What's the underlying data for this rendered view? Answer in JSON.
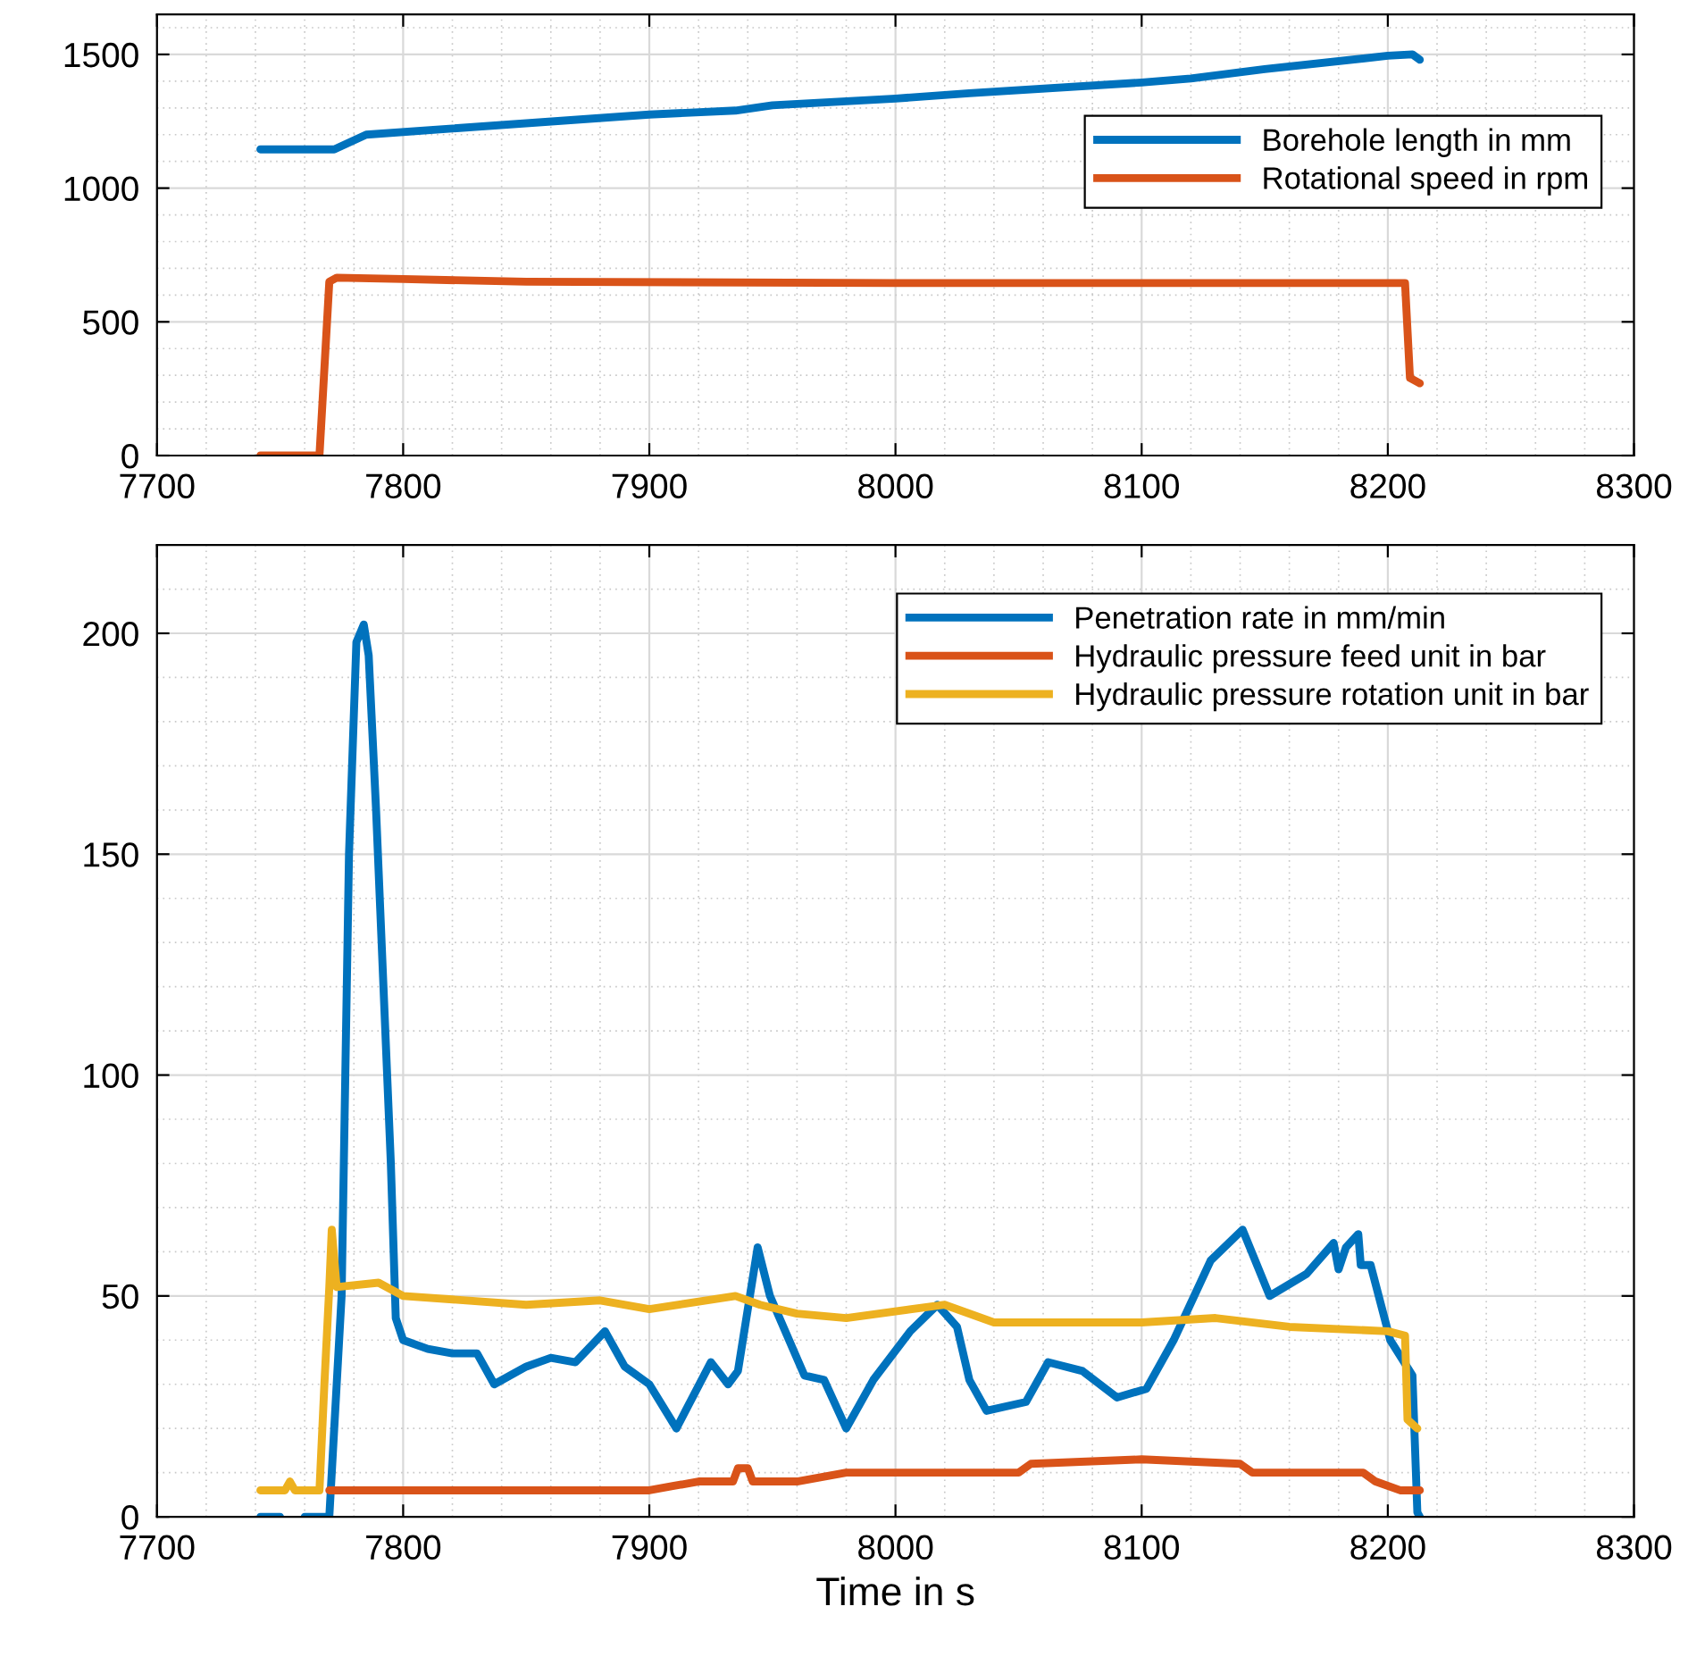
{
  "chart_data": [
    {
      "type": "line",
      "xlim": [
        7700,
        8300
      ],
      "xticks": [
        7700,
        7800,
        7900,
        8000,
        8100,
        8200,
        8300
      ],
      "ylim": [
        0,
        1650
      ],
      "yticks": [
        0,
        500,
        1000,
        1500
      ],
      "grid": true,
      "legend": "top right",
      "line_style": "solid",
      "marker": "none",
      "series": [
        {
          "name": "Borehole length in mm",
          "color": "#0072bd",
          "x": [
            7742,
            7772,
            7785,
            7900,
            7935,
            7950,
            8000,
            8030,
            8100,
            8120,
            8150,
            8200,
            8210,
            8213
          ],
          "values": [
            1145,
            1145,
            1200,
            1275,
            1290,
            1310,
            1335,
            1355,
            1395,
            1410,
            1445,
            1495,
            1500,
            1480
          ]
        },
        {
          "name": "Rotational speed in rpm",
          "color": "#d95319",
          "x": [
            7742,
            7766,
            7770,
            7773,
            7800,
            7850,
            8000,
            8100,
            8207,
            8209,
            8213
          ],
          "values": [
            0,
            0,
            650,
            665,
            660,
            650,
            645,
            645,
            645,
            290,
            270
          ]
        }
      ]
    },
    {
      "type": "line",
      "xlabel": "Time in s",
      "xlim": [
        7700,
        8300
      ],
      "xticks": [
        7700,
        7800,
        7900,
        8000,
        8100,
        8200,
        8300
      ],
      "ylim": [
        0,
        220
      ],
      "yticks": [
        0,
        50,
        100,
        150,
        200
      ],
      "grid": true,
      "legend": "top right",
      "line_style": "solid",
      "marker": "none",
      "series": [
        {
          "name": "Penetration rate in mm/min",
          "color": "#0072bd",
          "x": [
            7742,
            7750,
            7755,
            7760,
            7768,
            7770,
            7775,
            7778,
            7781,
            7784,
            7786,
            7789,
            7792,
            7795,
            7797,
            7800,
            7810,
            7820,
            7830,
            7837,
            7850,
            7860,
            7870,
            7882,
            7890,
            7900,
            7911,
            7925,
            7932,
            7936,
            7944,
            7949,
            7963,
            7971,
            7980,
            7991,
            8006,
            8017,
            8025,
            8030,
            8037,
            8053,
            8062,
            8076,
            8090,
            8102,
            8113,
            8128,
            8141,
            8152,
            8167,
            8178,
            8180,
            8183,
            8188,
            8189,
            8193,
            8201,
            8210,
            8212,
            8213
          ],
          "values": [
            0,
            0,
            null,
            0,
            0,
            0,
            50,
            150,
            198,
            202,
            195,
            160,
            120,
            80,
            45,
            40,
            38,
            37,
            37,
            30,
            34,
            36,
            35,
            42,
            34,
            30,
            20,
            35,
            30,
            33,
            61,
            50,
            32,
            31,
            20,
            31,
            42,
            48,
            43,
            31,
            24,
            26,
            35,
            33,
            27,
            29,
            40,
            58,
            65,
            50,
            55,
            62,
            56,
            61,
            64,
            57,
            57,
            40,
            32,
            1,
            0
          ]
        },
        {
          "name": "Hydraulic pressure feed unit in bar",
          "color": "#d95319",
          "x": [
            7770,
            7800,
            7900,
            7910,
            7920,
            7934,
            7936,
            7940,
            7942,
            7960,
            7980,
            8050,
            8055,
            8100,
            8140,
            8145,
            8190,
            8195,
            8205,
            8213
          ],
          "values": [
            6,
            6,
            6,
            7,
            8,
            8,
            11,
            11,
            8,
            8,
            10,
            10,
            12,
            13,
            12,
            10,
            10,
            8,
            6,
            6
          ]
        },
        {
          "name": "Hydraulic pressure rotation unit in bar",
          "color": "#edb120",
          "x": [
            7742,
            7752,
            7754,
            7756,
            7766,
            7768,
            7770,
            7771,
            7773,
            7790,
            7800,
            7850,
            7880,
            7900,
            7935,
            7945,
            7960,
            7980,
            8020,
            8040,
            8100,
            8130,
            8160,
            8200,
            8207,
            8208,
            8212
          ],
          "values": [
            6,
            6,
            8,
            6,
            6,
            30,
            52,
            65,
            52,
            53,
            50,
            48,
            49,
            47,
            50,
            48,
            46,
            45,
            48,
            44,
            44,
            45,
            43,
            42,
            41,
            22,
            20
          ]
        }
      ]
    }
  ]
}
